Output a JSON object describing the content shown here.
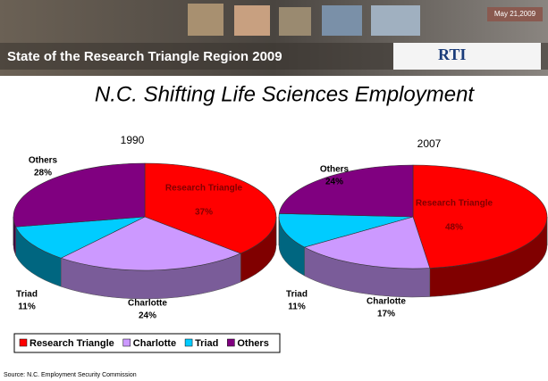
{
  "header": {
    "banner": "State of the Research Triangle Region 2009",
    "date": "May 21,2009",
    "logo": "RTI"
  },
  "title": "N.C. Shifting Life Sciences Employment",
  "source": "Source: N.C. Employment Security Commission",
  "chart_data": [
    {
      "type": "pie",
      "title": "1990",
      "categories": [
        "Research Triangle",
        "Charlotte",
        "Triad",
        "Others"
      ],
      "values": [
        37,
        24,
        11,
        28
      ],
      "value_labels": [
        "37%",
        "24%",
        "11%",
        "28%"
      ],
      "colors": [
        "#ff0000",
        "#cc99ff",
        "#00ccff",
        "#800080"
      ]
    },
    {
      "type": "pie",
      "title": "2007",
      "categories": [
        "Research Triangle",
        "Charlotte",
        "Triad",
        "Others"
      ],
      "values": [
        48,
        17,
        11,
        24
      ],
      "value_labels": [
        "48%",
        "17%",
        "11%",
        "24%"
      ],
      "colors": [
        "#ff0000",
        "#cc99ff",
        "#00ccff",
        "#800080"
      ]
    }
  ]
}
